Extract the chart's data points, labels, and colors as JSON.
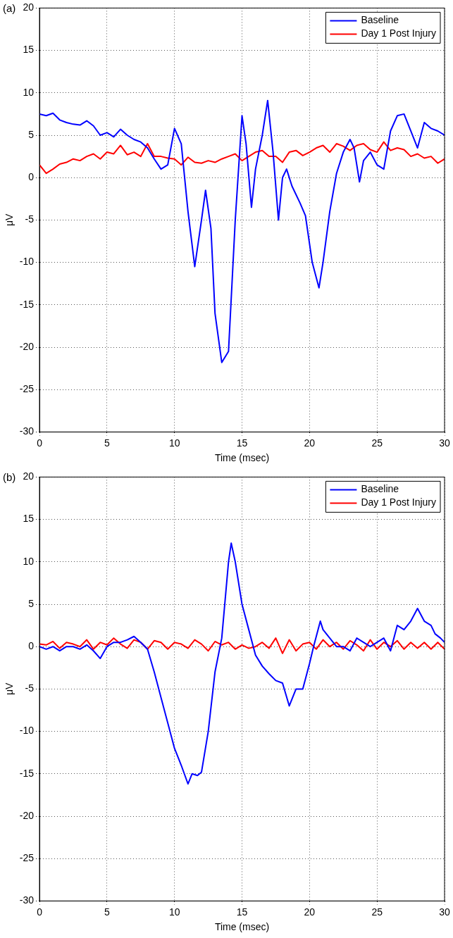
{
  "chart_data": [
    {
      "type": "line",
      "annotations": [
        "(a)"
      ],
      "xlabel": "Time (msec)",
      "ylabel": "μV",
      "xlim": [
        0,
        30
      ],
      "xticks": [
        0,
        5,
        10,
        15,
        20,
        25,
        30
      ],
      "ylim": [
        -30,
        20
      ],
      "yticks": [
        -30,
        -25,
        -20,
        -15,
        -10,
        -5,
        0,
        5,
        10,
        15,
        20
      ],
      "grid": true,
      "legend": "top right",
      "line_style": "solid",
      "marker": "none",
      "series": [
        {
          "name": "Baseline",
          "color": "#0000ff",
          "x": [
            0,
            0.5,
            1,
            1.5,
            2,
            2.5,
            3,
            3.5,
            4,
            4.5,
            5,
            5.5,
            6,
            6.5,
            7,
            7.5,
            8,
            8.5,
            9,
            9.5,
            10,
            10.5,
            11,
            11.5,
            12,
            12.3,
            12.7,
            13,
            13.5,
            14,
            14.5,
            15,
            15.3,
            15.7,
            16,
            16.5,
            16.9,
            17.3,
            17.7,
            18,
            18.3,
            18.7,
            19.3,
            19.7,
            20.2,
            20.7,
            21,
            21.5,
            22,
            22.5,
            23,
            23.3,
            23.7,
            24,
            24.5,
            25,
            25.5,
            26,
            26.5,
            27,
            27.5,
            28,
            28.5,
            29,
            29.5,
            30
          ],
          "values": [
            7.5,
            7.3,
            7.6,
            6.8,
            6.5,
            6.3,
            6.2,
            6.7,
            6.1,
            5,
            5.3,
            4.8,
            5.7,
            5,
            4.5,
            4.2,
            3.5,
            2.2,
            1,
            1.5,
            5.8,
            4,
            -4,
            -10.5,
            -5,
            -1.5,
            -6,
            -16,
            -21.8,
            -20.5,
            -5,
            7.3,
            4,
            -3.5,
            1,
            5,
            9.1,
            3,
            -5,
            0,
            1,
            -1,
            -3,
            -4.5,
            -10,
            -13,
            -10,
            -4,
            0.5,
            3,
            4.5,
            3.5,
            -0.5,
            2,
            3,
            1.5,
            1,
            5.5,
            7.3,
            7.5,
            5.5,
            3.5,
            6.5,
            5.8,
            5.5,
            5
          ]
        },
        {
          "name": "Day 1 Post Injury",
          "color": "#ff0000",
          "x": [
            0,
            0.5,
            1,
            1.5,
            2,
            2.5,
            3,
            3.5,
            4,
            4.5,
            5,
            5.5,
            6,
            6.5,
            7,
            7.5,
            8,
            8.5,
            9,
            9.5,
            10,
            10.5,
            11,
            11.5,
            12,
            12.5,
            13,
            13.5,
            14,
            14.5,
            15,
            15.5,
            16,
            16.5,
            17,
            17.5,
            18,
            18.5,
            19,
            19.5,
            20,
            20.5,
            21,
            21.5,
            22,
            22.5,
            23,
            23.5,
            24,
            24.5,
            25,
            25.5,
            26,
            26.5,
            27,
            27.5,
            28,
            28.5,
            29,
            29.5,
            30
          ],
          "values": [
            1.5,
            0.5,
            1,
            1.6,
            1.8,
            2.2,
            2,
            2.5,
            2.8,
            2.2,
            3,
            2.8,
            3.8,
            2.7,
            3,
            2.5,
            4,
            2.5,
            2.5,
            2.3,
            2.2,
            1.5,
            2.4,
            1.8,
            1.7,
            2,
            1.8,
            2.2,
            2.5,
            2.8,
            2,
            2.5,
            3,
            3.2,
            2.5,
            2.5,
            1.8,
            3,
            3.2,
            2.6,
            3,
            3.5,
            3.8,
            3,
            4,
            3.7,
            3.2,
            3.8,
            4,
            3.3,
            3,
            4.2,
            3.2,
            3.5,
            3.3,
            2.5,
            2.8,
            2.3,
            2.5,
            1.7,
            2.2
          ]
        }
      ]
    },
    {
      "type": "line",
      "annotations": [
        "(b)"
      ],
      "xlabel": "Time (msec)",
      "ylabel": "μV",
      "xlim": [
        0,
        30
      ],
      "xticks": [
        0,
        5,
        10,
        15,
        20,
        25,
        30
      ],
      "ylim": [
        -30,
        20
      ],
      "yticks": [
        -30,
        -25,
        -20,
        -15,
        -10,
        -5,
        0,
        5,
        10,
        15,
        20
      ],
      "grid": true,
      "legend": "top right",
      "line_style": "solid",
      "marker": "none",
      "series": [
        {
          "name": "Baseline",
          "color": "#0000ff",
          "x": [
            0,
            0.5,
            1,
            1.5,
            2,
            2.5,
            3,
            3.5,
            4,
            4.5,
            5,
            5.5,
            6,
            6.5,
            7,
            7.5,
            8,
            8.5,
            9,
            9.5,
            10,
            10.5,
            11,
            11.3,
            11.7,
            12,
            12.5,
            13,
            13.5,
            14,
            14.2,
            14.5,
            15,
            15.5,
            16,
            16.5,
            17,
            17.5,
            18,
            18.5,
            19,
            19.5,
            20,
            20.3,
            20.8,
            21,
            21.5,
            22,
            22.5,
            23,
            23.5,
            24,
            24.5,
            25,
            25.5,
            26,
            26.5,
            27,
            27.5,
            28,
            28.5,
            29,
            29.3,
            29.7,
            30
          ],
          "values": [
            0,
            -0.3,
            0,
            -0.5,
            0,
            0,
            -0.3,
            0.2,
            -0.5,
            -1.4,
            0,
            0.5,
            0.5,
            0.8,
            1.2,
            0.5,
            -0.3,
            -3,
            -6,
            -9,
            -12,
            -14,
            -16.2,
            -15,
            -15.2,
            -14.8,
            -10,
            -3,
            1,
            10,
            12.2,
            10,
            5,
            2,
            -1,
            -2.3,
            -3.2,
            -4,
            -4.3,
            -7,
            -5,
            -5,
            -2,
            0,
            3,
            2,
            1,
            0,
            0,
            -0.5,
            1,
            0.5,
            0,
            0.5,
            1,
            -0.5,
            2.5,
            2,
            3,
            4.5,
            3,
            2.5,
            1.5,
            1,
            0.5
          ]
        },
        {
          "name": "Day 1 Post Injury",
          "color": "#ff0000",
          "x": [
            0,
            0.5,
            1,
            1.5,
            2,
            2.5,
            3,
            3.5,
            4,
            4.5,
            5,
            5.5,
            6,
            6.5,
            7,
            7.5,
            8,
            8.5,
            9,
            9.5,
            10,
            10.5,
            11,
            11.5,
            12,
            12.5,
            13,
            13.5,
            14,
            14.5,
            15,
            15.5,
            16,
            16.5,
            17,
            17.5,
            18,
            18.5,
            19,
            19.5,
            20,
            20.5,
            21,
            21.5,
            22,
            22.5,
            23,
            23.5,
            24,
            24.5,
            25,
            25.5,
            26,
            26.5,
            27,
            27.5,
            28,
            28.5,
            29,
            29.5,
            30
          ],
          "values": [
            0.3,
            0.2,
            0.6,
            -0.2,
            0.5,
            0.3,
            0,
            0.8,
            -0.3,
            0.5,
            0.2,
            1,
            0.3,
            -0.2,
            0.8,
            0.5,
            -0.3,
            0.7,
            0.5,
            -0.3,
            0.5,
            0.3,
            -0.2,
            0.8,
            0.3,
            -0.5,
            0.6,
            0.2,
            0.5,
            -0.3,
            0.2,
            -0.2,
            0,
            0.5,
            -0.2,
            1,
            -0.8,
            0.8,
            -0.5,
            0.3,
            0.5,
            -0.3,
            0.8,
            0,
            0.5,
            -0.3,
            0.7,
            0.2,
            -0.5,
            0.8,
            -0.3,
            0.5,
            0,
            0.7,
            -0.3,
            0.5,
            -0.2,
            0.5,
            -0.3,
            0.5,
            -0.3
          ]
        }
      ]
    }
  ]
}
